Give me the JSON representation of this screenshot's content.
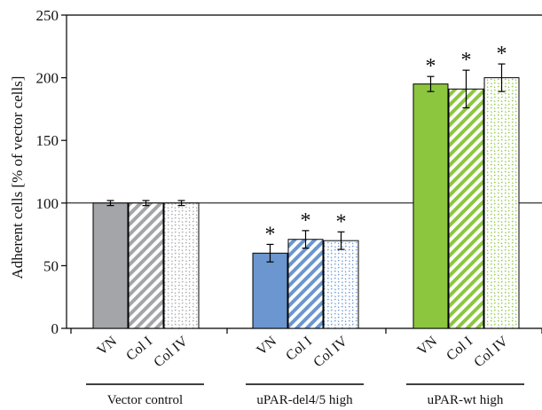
{
  "chart_data": {
    "type": "bar",
    "ylabel": "Adherent cells [% of  vector cells]",
    "ylim": [
      0,
      250
    ],
    "yticks": [
      0,
      50,
      100,
      150,
      200,
      250
    ],
    "grid": false,
    "reference_line": 100,
    "significance_marker": "*",
    "groups": [
      {
        "label": "Vector control",
        "color": "#a3a5a8",
        "bars": [
          {
            "label": "VN",
            "value": 100,
            "error": 2,
            "pattern": "solid",
            "significant": false
          },
          {
            "label": "Col I",
            "value": 100,
            "error": 2,
            "pattern": "stripes",
            "significant": false
          },
          {
            "label": "Col IV",
            "value": 100,
            "error": 2,
            "pattern": "dots",
            "significant": false
          }
        ]
      },
      {
        "label": "uPAR-del4/5 high",
        "color": "#6b96cf",
        "bars": [
          {
            "label": "VN",
            "value": 60,
            "error": 7,
            "pattern": "solid",
            "significant": true
          },
          {
            "label": "Col I",
            "value": 71,
            "error": 7,
            "pattern": "stripes",
            "significant": true
          },
          {
            "label": "Col IV",
            "value": 70,
            "error": 7,
            "pattern": "dots",
            "significant": true
          }
        ]
      },
      {
        "label": "uPAR-wt high",
        "color": "#8cc63f",
        "bars": [
          {
            "label": "VN",
            "value": 195,
            "error": 6,
            "pattern": "solid",
            "significant": true
          },
          {
            "label": "Col I",
            "value": 191,
            "error": 15,
            "pattern": "stripes",
            "significant": true
          },
          {
            "label": "Col IV",
            "value": 200,
            "error": 11,
            "pattern": "dots",
            "significant": true
          }
        ]
      }
    ]
  }
}
